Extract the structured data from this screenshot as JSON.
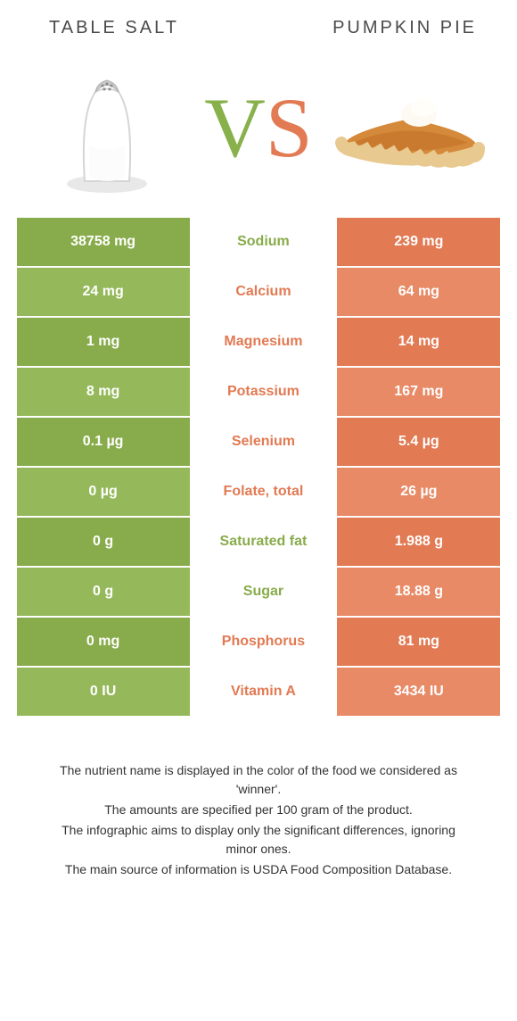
{
  "header": {
    "left_title": "TABLE SALT",
    "right_title": "PUMPKIN PIE"
  },
  "vs": {
    "v": "V",
    "s": "S"
  },
  "colors": {
    "left_dark": "#88ac4b",
    "left_light": "#95b95a",
    "right_dark": "#e27a53",
    "right_light": "#e88a66",
    "mid_green": "#88ac4b",
    "mid_orange": "#e27a53"
  },
  "rows": [
    {
      "label": "Sodium",
      "left": "38758 mg",
      "right": "239 mg",
      "winner": "left"
    },
    {
      "label": "Calcium",
      "left": "24 mg",
      "right": "64 mg",
      "winner": "right"
    },
    {
      "label": "Magnesium",
      "left": "1 mg",
      "right": "14 mg",
      "winner": "right"
    },
    {
      "label": "Potassium",
      "left": "8 mg",
      "right": "167 mg",
      "winner": "right"
    },
    {
      "label": "Selenium",
      "left": "0.1 µg",
      "right": "5.4 µg",
      "winner": "right"
    },
    {
      "label": "Folate, total",
      "left": "0 µg",
      "right": "26 µg",
      "winner": "right"
    },
    {
      "label": "Saturated fat",
      "left": "0 g",
      "right": "1.988 g",
      "winner": "left"
    },
    {
      "label": "Sugar",
      "left": "0 g",
      "right": "18.88 g",
      "winner": "left"
    },
    {
      "label": "Phosphorus",
      "left": "0 mg",
      "right": "81 mg",
      "winner": "right"
    },
    {
      "label": "Vitamin A",
      "left": "0 IU",
      "right": "3434 IU",
      "winner": "right"
    }
  ],
  "footer": {
    "line1": "The nutrient name is displayed in the color of the food we considered as 'winner'.",
    "line2": "The amounts are specified per 100 gram of the product.",
    "line3": "The infographic aims to display only the significant differences, ignoring minor ones.",
    "line4": "The main source of information is USDA Food Composition Database."
  },
  "typography": {
    "title_fontsize": 20,
    "cell_fontsize": 16,
    "vs_fontsize": 95,
    "footer_fontsize": 14
  }
}
